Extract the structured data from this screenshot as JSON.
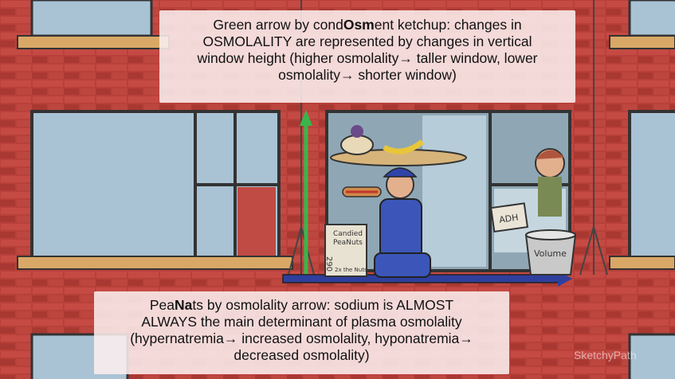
{
  "callout_top": {
    "line1_pre": "Green arrow by cond",
    "line1_bold": "Osm",
    "line1_post": "ent ketchup: changes in",
    "line2": "OSMOLALITY are represented by changes in vertical",
    "line3": "window height (higher osmolality→ taller window, lower",
    "line4": "osmolality→ shorter window)"
  },
  "callout_bottom": {
    "line1_pre": "Pea",
    "line1_bold": "Na",
    "line1_post": "ts by osmolality arrow: sodium is ALMOST",
    "line2": "ALWAYS the main determinant of plasma osmolality",
    "line3": "(hypernatremia→ increased osmolality, hyponatremia→",
    "line4": "decreased osmolality)"
  },
  "scene_labels": {
    "can_line1": "Candied",
    "can_line2": "PeaNuts",
    "can_number": "290",
    "can_line3": "2x the Nuts",
    "bucket_label": "Volume",
    "window_sign": "ADH"
  },
  "watermark": "SketchyPath",
  "colors": {
    "brick": "#b33a35",
    "window_glass": "#a9c3d4",
    "window_frame": "#3a3a3a",
    "ledge": "#d9a866",
    "arrow_green": "#3bb54a"
  }
}
